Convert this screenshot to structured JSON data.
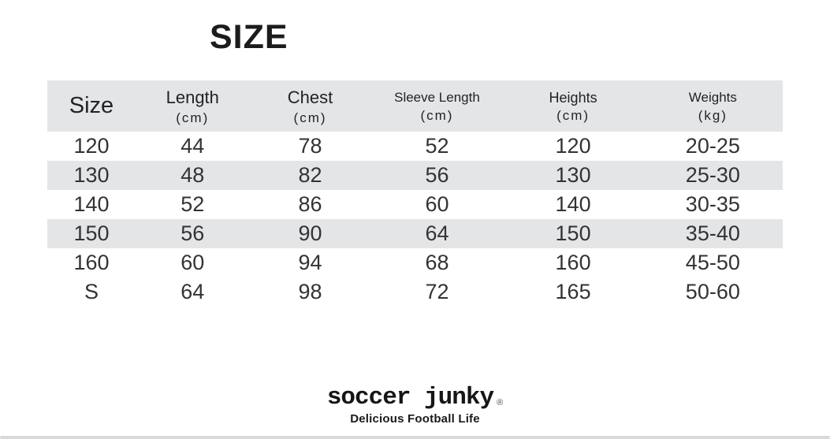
{
  "title": "SIZE",
  "chart_data": {
    "type": "table",
    "title": "SIZE",
    "columns": [
      {
        "label": "Size",
        "unit": ""
      },
      {
        "label": "Length",
        "unit": "(cm)"
      },
      {
        "label": "Chest",
        "unit": "(cm)"
      },
      {
        "label": "Sleeve Length",
        "unit": "(cm)"
      },
      {
        "label": "Heights",
        "unit": "(cm)"
      },
      {
        "label": "Weights",
        "unit": "(kg)"
      }
    ],
    "rows": [
      [
        "120",
        "44",
        "78",
        "52",
        "120",
        "20-25"
      ],
      [
        "130",
        "48",
        "82",
        "56",
        "130",
        "25-30"
      ],
      [
        "140",
        "52",
        "86",
        "60",
        "140",
        "30-35"
      ],
      [
        "150",
        "56",
        "90",
        "64",
        "150",
        "35-40"
      ],
      [
        "160",
        "60",
        "94",
        "68",
        "160",
        "45-50"
      ],
      [
        "S",
        "64",
        "98",
        "72",
        "165",
        "50-60"
      ]
    ],
    "layout_hints": {
      "striped_rows": [
        1,
        3
      ],
      "header_background": "#e4e5e7",
      "stripe_color": "#e4e5e7"
    }
  },
  "brand": {
    "logo": "soccer junky",
    "registered": "®",
    "tagline": "Delicious Football Life"
  },
  "colors": {
    "stripe": "#e4e5e7",
    "text": "#2b2b2d",
    "bottom_bar": "#d8d9db"
  }
}
